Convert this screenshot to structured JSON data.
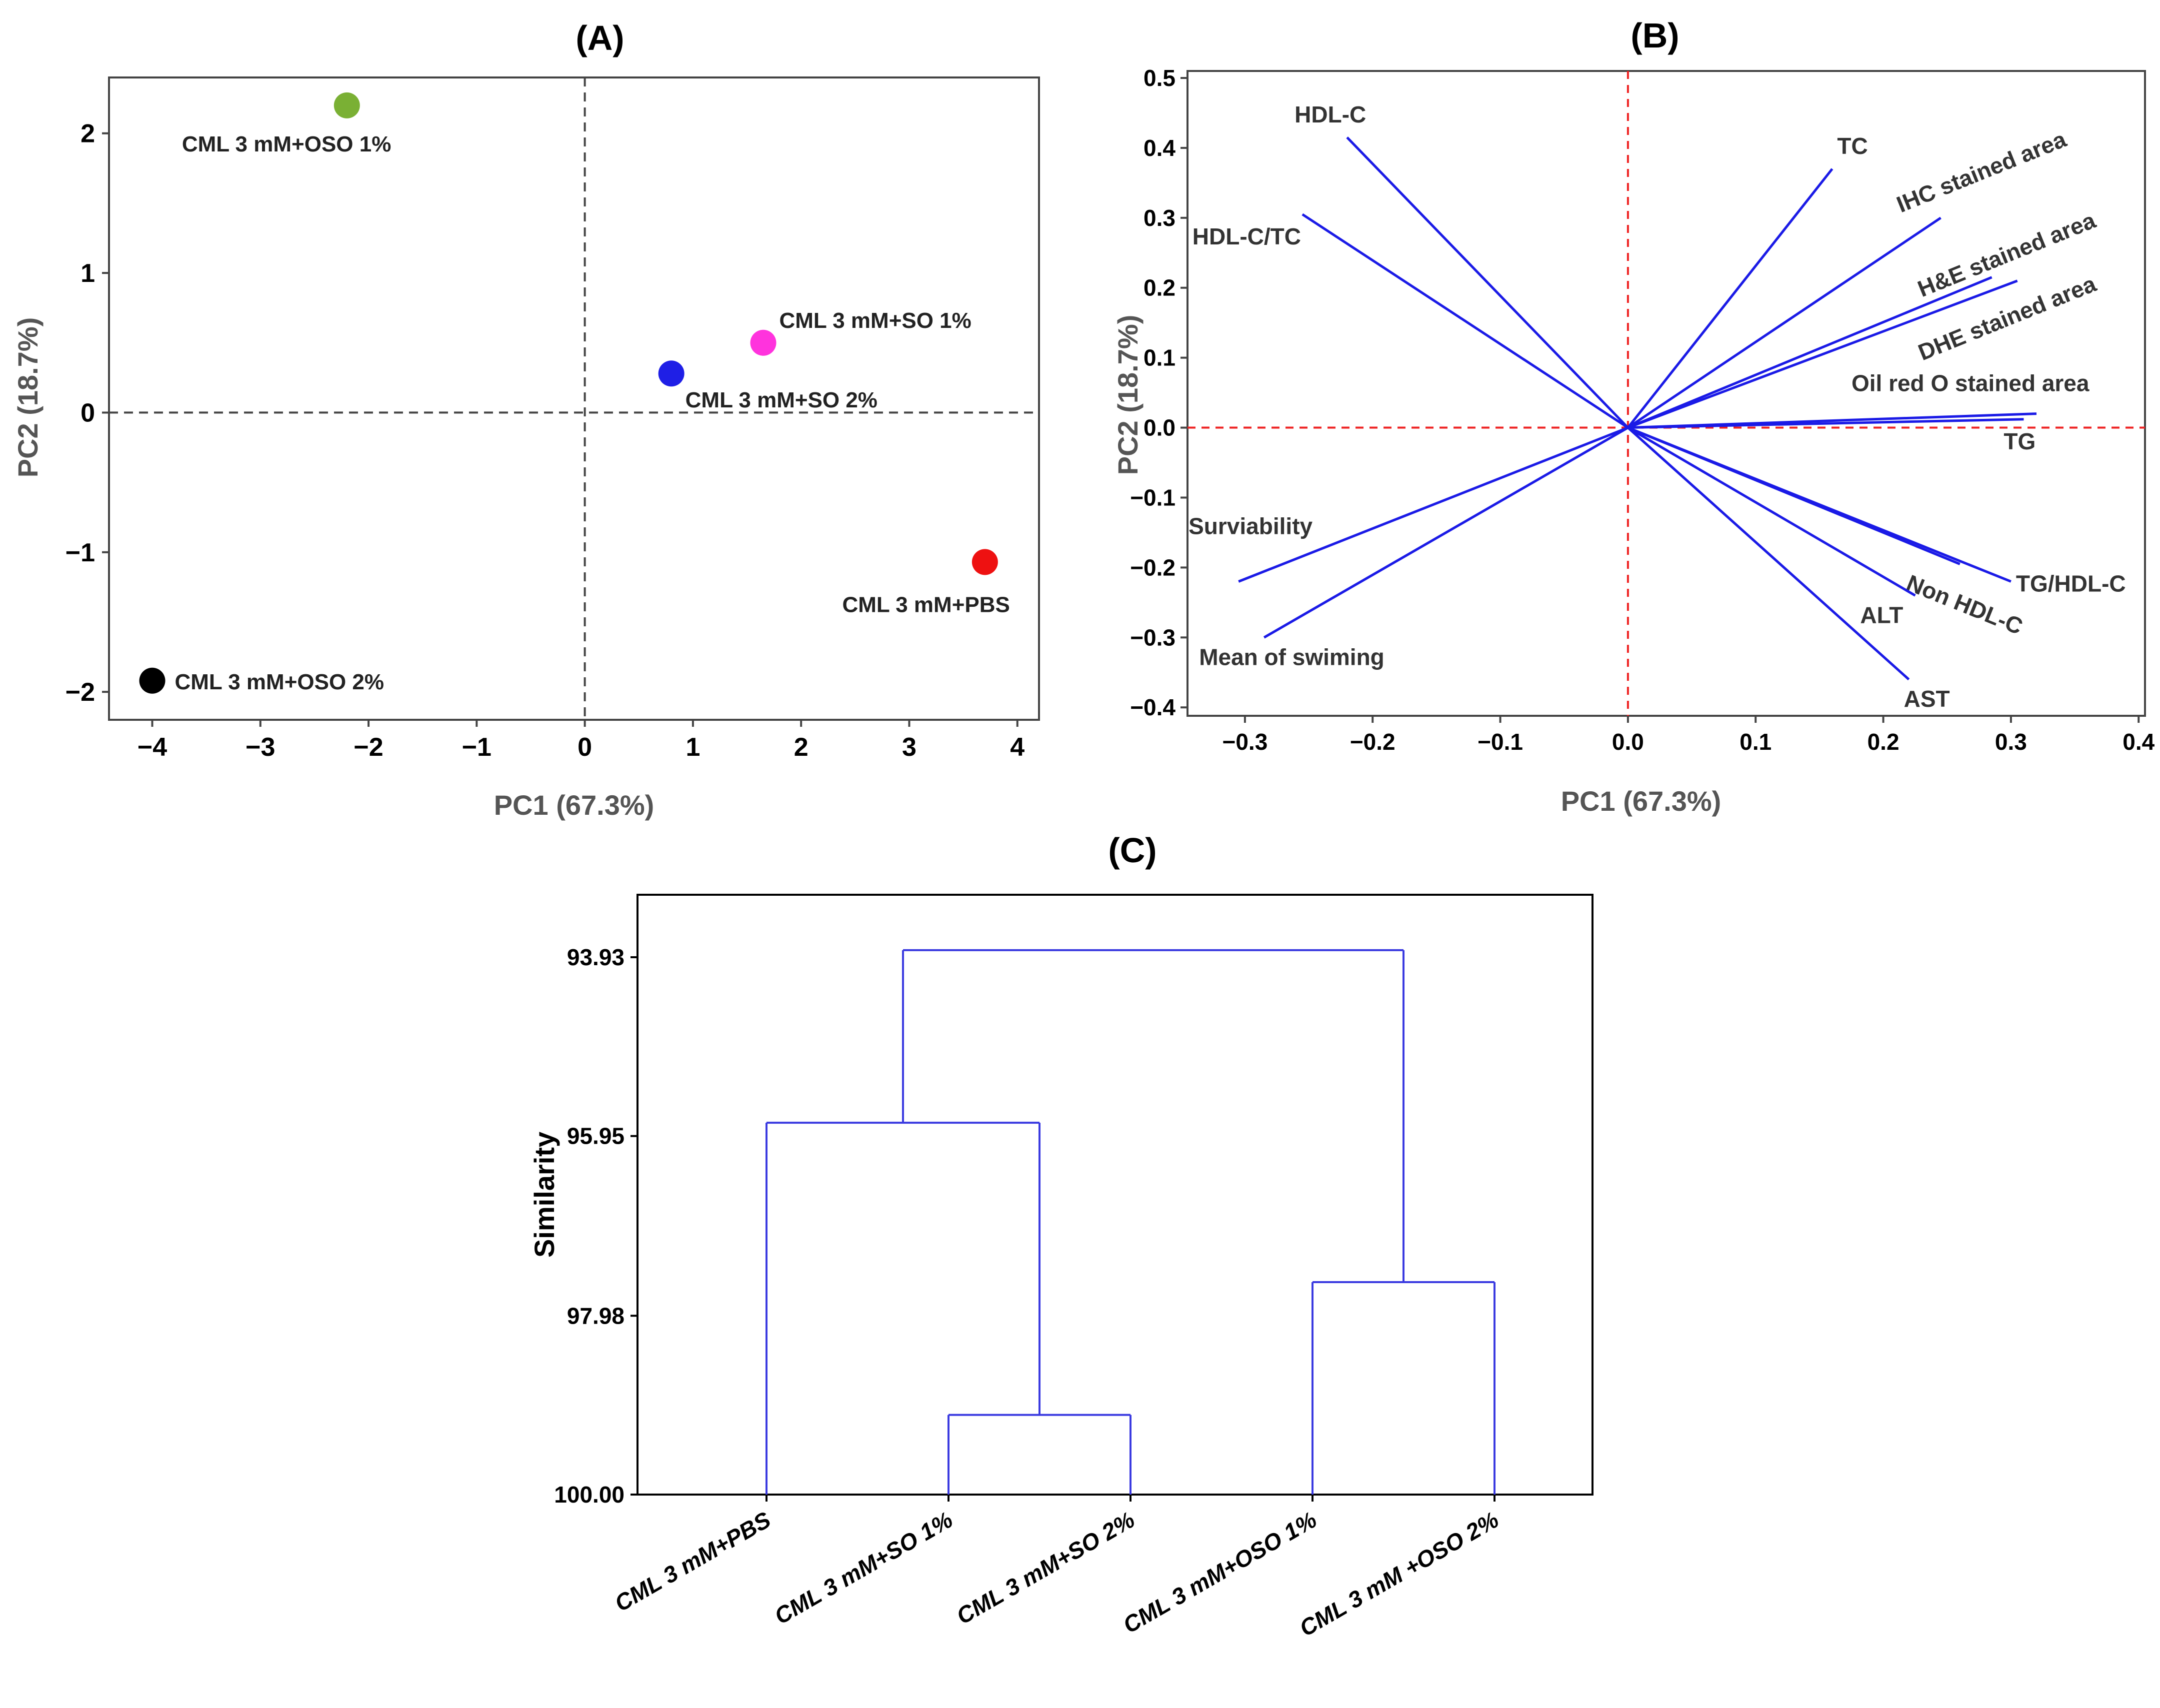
{
  "chart_data": [
    {
      "panel": "(A)",
      "type": "scatter",
      "xlabel": "PC1 (67.3%)",
      "ylabel": "PC2 (18.7%)",
      "xlim": [
        -4.4,
        4.2
      ],
      "ylim": [
        -2.2,
        2.4
      ],
      "xticks": [
        -4,
        -3,
        -2,
        -1,
        0,
        1,
        2,
        3,
        4
      ],
      "yticks": [
        -2,
        -1,
        0,
        1,
        2
      ],
      "points": [
        {
          "label": "CML 3 mM+OSO 1%",
          "x": -2.2,
          "y": 2.2,
          "color": "#7ab034"
        },
        {
          "label": "CML 3 mM+SO 1%",
          "x": 1.65,
          "y": 0.5,
          "color": "#ff33dd"
        },
        {
          "label": "CML 3 mM+SO 2%",
          "x": 0.8,
          "y": 0.28,
          "color": "#1f1fe6"
        },
        {
          "label": "CML 3 mM+PBS",
          "x": 3.7,
          "y": -1.07,
          "color": "#ee1111"
        },
        {
          "label": "CML 3 mM+OSO 2%",
          "x": -4.0,
          "y": -1.92,
          "color": "#000000"
        }
      ]
    },
    {
      "panel": "(B)",
      "type": "biplot",
      "xlabel": "PC1 (67.3%)",
      "ylabel": "PC2 (18.7%)",
      "xlim": [
        -0.345,
        0.405
      ],
      "ylim": [
        -0.412,
        0.51
      ],
      "xticks": [
        -0.3,
        -0.2,
        -0.1,
        0.0,
        0.1,
        0.2,
        0.3,
        0.4
      ],
      "yticks": [
        -0.4,
        -0.3,
        -0.2,
        -0.1,
        0.0,
        0.1,
        0.2,
        0.3,
        0.4,
        0.5
      ],
      "loadings": [
        {
          "label": "HDL-C",
          "x": -0.22,
          "y": 0.415
        },
        {
          "label": "HDL-C/TC",
          "x": -0.255,
          "y": 0.305
        },
        {
          "label": "TC",
          "x": 0.16,
          "y": 0.37
        },
        {
          "label": "IHC stained area",
          "x": 0.245,
          "y": 0.3
        },
        {
          "label": "H&E stained area",
          "x": 0.285,
          "y": 0.215
        },
        {
          "label": "DHE stained area",
          "x": 0.305,
          "y": 0.21
        },
        {
          "label": "Oil red O stained area",
          "x": 0.32,
          "y": 0.02
        },
        {
          "label": "TG",
          "x": 0.31,
          "y": 0.012
        },
        {
          "label": "TG/HDL-C",
          "x": 0.3,
          "y": -0.22
        },
        {
          "label": "Non HDL-C",
          "x": 0.26,
          "y": -0.195
        },
        {
          "label": "ALT",
          "x": 0.225,
          "y": -0.24
        },
        {
          "label": "AST",
          "x": 0.22,
          "y": -0.36
        },
        {
          "label": "Surviability",
          "x": -0.305,
          "y": -0.22
        },
        {
          "label": "Mean of swiming",
          "x": -0.285,
          "y": -0.3
        }
      ]
    },
    {
      "panel": "(C)",
      "type": "dendrogram",
      "ylabel": "Similarity",
      "yticks": [
        "93.93",
        "95.95",
        "97.98",
        "100.00"
      ],
      "ylim": [
        100.0,
        93.1
      ],
      "leaves": [
        "CML 3 mM+PBS",
        "CML 3 mM+SO 1%",
        "CML 3 mM+SO 2%",
        "CML 3 mM+OSO 1%",
        "CML 3 mM +OSO 2%"
      ],
      "merges": [
        {
          "left": [
            1
          ],
          "right": [
            2
          ],
          "similarity": 99.1
        },
        {
          "left": [
            3
          ],
          "right": [
            4
          ],
          "similarity": 97.6
        },
        {
          "left": [
            0
          ],
          "right": [
            1,
            2
          ],
          "similarity": 95.8
        },
        {
          "left": [
            0,
            1,
            2
          ],
          "right": [
            3,
            4
          ],
          "similarity": 93.85
        }
      ]
    }
  ]
}
